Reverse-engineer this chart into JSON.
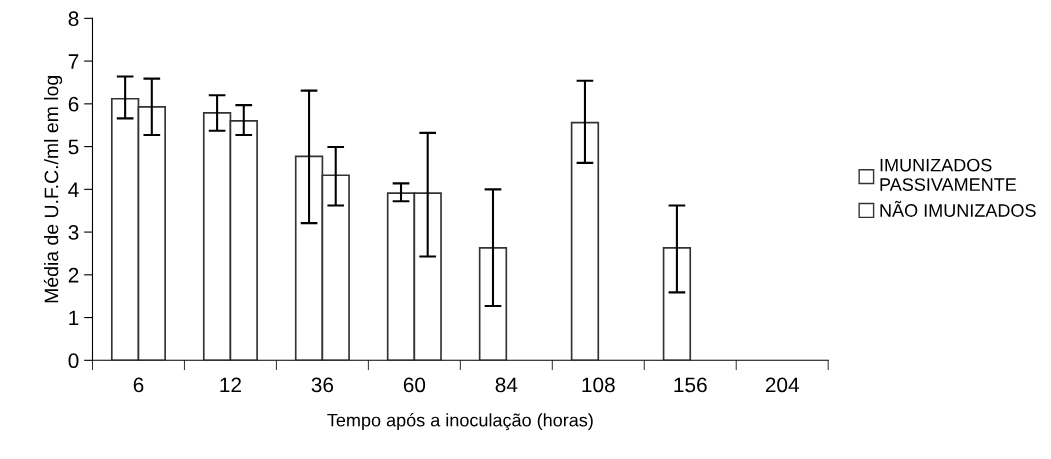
{
  "chart_data": {
    "type": "bar",
    "xlabel": "Tempo após a inoculação (horas)",
    "ylabel": "Média de U.F.C./ml em log",
    "categories": [
      "6",
      "12",
      "36",
      "60",
      "84",
      "108",
      "156",
      "204"
    ],
    "series": [
      {
        "name": "IMUNIZADOS\nPASSIVAMENTE",
        "color": "#ffffff",
        "values": [
          6.12,
          5.79,
          4.77,
          3.91,
          2.63,
          5.56,
          2.63,
          null
        ],
        "errors": [
          [
            5.66,
            6.64
          ],
          [
            5.37,
            6.2
          ],
          [
            3.21,
            6.31
          ],
          [
            3.72,
            4.14
          ],
          [
            1.27,
            4.0
          ],
          [
            4.62,
            6.54
          ],
          [
            1.59,
            3.62
          ],
          null
        ]
      },
      {
        "name": "NÃO IMUNIZADOS",
        "color": "#ffffff",
        "values": [
          5.93,
          5.6,
          4.33,
          3.91,
          null,
          null,
          null,
          null
        ],
        "errors": [
          [
            5.27,
            6.59
          ],
          [
            5.27,
            5.97
          ],
          [
            3.62,
            4.99
          ],
          [
            2.43,
            5.32
          ],
          null,
          null,
          null,
          null
        ]
      }
    ],
    "ylim": [
      0,
      8
    ],
    "yticks": [
      0,
      1,
      2,
      3,
      4,
      5,
      6,
      7,
      8
    ],
    "grid": false,
    "legend": "right"
  }
}
